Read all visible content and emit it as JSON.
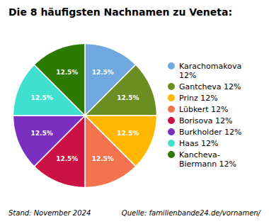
{
  "chart_data": {
    "type": "pie",
    "title": "Die 8 häufigsten Nachnamen zu Veneta:",
    "categories": [
      "Karachomakova\n12%",
      "Gantcheva 12%",
      "Prinz 12%",
      "Lübkert 12%",
      "Borisova 12%",
      "Burkholder 12%",
      "Haas 12%",
      "Kancheva-\nBiermann 12%"
    ],
    "values": [
      12.5,
      12.5,
      12.5,
      12.5,
      12.5,
      12.5,
      12.5,
      12.5
    ],
    "value_labels": [
      "12.5%",
      "12.5%",
      "12.5%",
      "12.5%",
      "12.5%",
      "12.5%",
      "12.5%",
      "12.5%"
    ],
    "colors": [
      "#6fa8dc",
      "#6b8e23",
      "#ffb700",
      "#f4734f",
      "#cc1144",
      "#7b2fbe",
      "#40e0d0",
      "#2d7a00"
    ],
    "data_labels": true,
    "legend": "right",
    "annotations": [
      "Stand: November 2024",
      "Quelle: familienbande24.de/vornamen/"
    ]
  }
}
